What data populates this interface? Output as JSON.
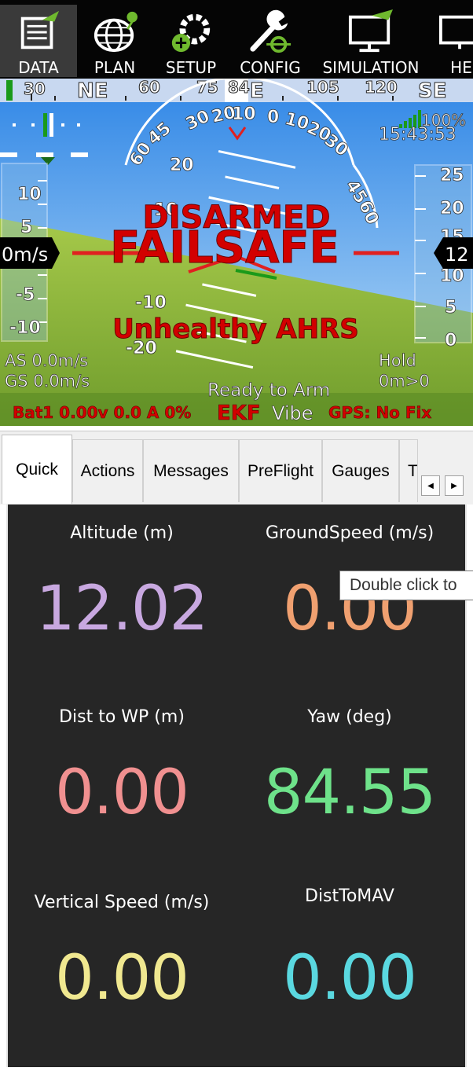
{
  "toolbar": {
    "items": [
      {
        "label": "DATA",
        "icon": "data-icon"
      },
      {
        "label": "PLAN",
        "icon": "globe-icon"
      },
      {
        "label": "SETUP",
        "icon": "gear-icon"
      },
      {
        "label": "CONFIG",
        "icon": "wrench-icon"
      },
      {
        "label": "SIMULATION",
        "icon": "monitor-icon"
      },
      {
        "label": "HE",
        "icon": "help-icon"
      }
    ]
  },
  "hud": {
    "heading_labels": [
      "30",
      "NE",
      "60",
      "75",
      "84",
      "E",
      "105",
      "120",
      "SE"
    ],
    "pitch_labels": [
      "20",
      "10",
      "-10",
      "-20"
    ],
    "roll_labels": [
      "60",
      "45",
      "30",
      "20",
      "10",
      "0",
      "10",
      "20",
      "30",
      "45",
      "60"
    ],
    "speed_ticks": [
      "10",
      "5",
      "-5",
      "-10"
    ],
    "alt_ticks": [
      "25",
      "20",
      "15",
      "10",
      "5",
      "0"
    ],
    "airspeed_readout": "0m/s",
    "altitude_readout": "12",
    "battery_pct": "100%",
    "time": "15:43:53",
    "status_disarmed": "DISARMED",
    "status_failsafe": "FAILSAFE",
    "status_ahrs": "Unhealthy AHRS",
    "as_text": "AS 0.0m/s",
    "gs_text": "GS 0.0m/s",
    "mode": "Hold",
    "wp_dist": "0m>0",
    "ready": "Ready to Arm",
    "battery_text": "Bat1 0.00v 0.0 A 0%",
    "ekf": "EKF",
    "vibe": "Vibe",
    "gps": "GPS: No Fix",
    "colors": {
      "sky": "#5ab0f0",
      "ground": "#8db63c",
      "warning_red": "#d20000"
    }
  },
  "tabs": {
    "items": [
      "Quick",
      "Actions",
      "Messages",
      "PreFlight",
      "Gauges",
      "T"
    ],
    "active": "Quick",
    "scroll_left": "◀",
    "scroll_right": "▶"
  },
  "quick": {
    "cells": [
      {
        "label": "Altitude (m)",
        "value": "12.02",
        "color": "#c8a8e0"
      },
      {
        "label": "GroundSpeed (m/s)",
        "value": "0.00",
        "color": "#f0a070"
      },
      {
        "label": "Dist to WP (m)",
        "value": "0.00",
        "color": "#f09090"
      },
      {
        "label": "Yaw (deg)",
        "value": "84.55",
        "color": "#6ee28a"
      },
      {
        "label": "Vertical Speed (m/s)",
        "value": "0.00",
        "color": "#f0e890"
      },
      {
        "label": "DistToMAV",
        "value": "0.00",
        "color": "#5ad8e0"
      }
    ]
  },
  "tooltip": "Double click to"
}
